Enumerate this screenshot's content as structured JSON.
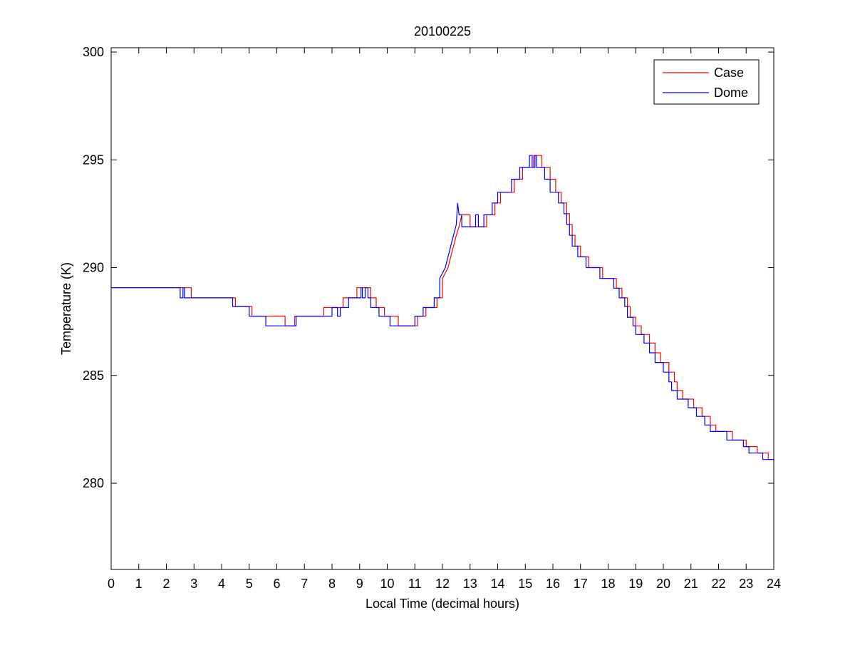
{
  "chart_data": {
    "type": "line",
    "title": "20100225",
    "xlabel": "Local Time (decimal hours)",
    "ylabel": "Temperature (K)",
    "xlim": [
      0,
      24
    ],
    "ylim": [
      276,
      300.2
    ],
    "xticks": [
      "0",
      "1",
      "2",
      "3",
      "4",
      "5",
      "6",
      "7",
      "8",
      "9",
      "10",
      "11",
      "12",
      "13",
      "14",
      "15",
      "16",
      "17",
      "18",
      "19",
      "20",
      "21",
      "22",
      "23",
      "24"
    ],
    "yticks": [
      "280",
      "285",
      "290",
      "295",
      "300"
    ],
    "grid": false,
    "legend_position": "top-right",
    "series": [
      {
        "name": "Case",
        "color": "#ff0000",
        "points": [
          [
            0.0,
            289.07
          ],
          [
            2.5,
            289.07
          ],
          [
            2.9,
            289.07
          ],
          [
            2.9,
            288.6
          ],
          [
            4.5,
            288.6
          ],
          [
            4.5,
            288.2
          ],
          [
            5.1,
            288.2
          ],
          [
            5.1,
            287.75
          ],
          [
            6.3,
            287.75
          ],
          [
            6.3,
            287.3
          ],
          [
            6.65,
            287.3
          ],
          [
            6.65,
            287.75
          ],
          [
            7.7,
            287.75
          ],
          [
            7.7,
            288.15
          ],
          [
            8.4,
            288.15
          ],
          [
            8.4,
            288.6
          ],
          [
            8.9,
            288.6
          ],
          [
            8.9,
            289.07
          ],
          [
            9.4,
            289.07
          ],
          [
            9.4,
            288.6
          ],
          [
            9.6,
            288.6
          ],
          [
            9.6,
            288.15
          ],
          [
            9.9,
            288.15
          ],
          [
            9.9,
            287.75
          ],
          [
            10.4,
            287.75
          ],
          [
            10.4,
            287.3
          ],
          [
            11.1,
            287.3
          ],
          [
            11.1,
            287.75
          ],
          [
            11.4,
            287.75
          ],
          [
            11.4,
            288.15
          ],
          [
            11.8,
            288.15
          ],
          [
            11.8,
            288.6
          ],
          [
            12.0,
            288.6
          ],
          [
            12.0,
            289.5
          ],
          [
            12.2,
            290.0
          ],
          [
            12.3,
            290.5
          ],
          [
            12.4,
            291.0
          ],
          [
            12.5,
            291.5
          ],
          [
            12.6,
            291.9
          ],
          [
            12.7,
            292.45
          ],
          [
            13.0,
            292.45
          ],
          [
            13.0,
            291.9
          ],
          [
            13.6,
            291.9
          ],
          [
            13.6,
            292.45
          ],
          [
            13.9,
            292.45
          ],
          [
            13.9,
            293.0
          ],
          [
            14.1,
            293.0
          ],
          [
            14.1,
            293.5
          ],
          [
            14.6,
            293.5
          ],
          [
            14.6,
            294.1
          ],
          [
            14.9,
            294.1
          ],
          [
            14.9,
            294.65
          ],
          [
            15.3,
            294.65
          ],
          [
            15.3,
            295.2
          ],
          [
            15.6,
            295.2
          ],
          [
            15.6,
            294.65
          ],
          [
            15.9,
            294.65
          ],
          [
            15.9,
            294.1
          ],
          [
            16.1,
            294.1
          ],
          [
            16.1,
            293.5
          ],
          [
            16.3,
            293.5
          ],
          [
            16.3,
            293.0
          ],
          [
            16.5,
            293.0
          ],
          [
            16.5,
            292.5
          ],
          [
            16.6,
            292.5
          ],
          [
            16.6,
            292.0
          ],
          [
            16.7,
            292.0
          ],
          [
            16.7,
            291.5
          ],
          [
            16.8,
            291.5
          ],
          [
            16.8,
            291.0
          ],
          [
            17.0,
            291.0
          ],
          [
            17.0,
            290.5
          ],
          [
            17.3,
            290.5
          ],
          [
            17.3,
            290.0
          ],
          [
            17.8,
            290.0
          ],
          [
            17.8,
            289.5
          ],
          [
            18.3,
            289.5
          ],
          [
            18.3,
            289.05
          ],
          [
            18.5,
            289.05
          ],
          [
            18.5,
            288.6
          ],
          [
            18.7,
            288.6
          ],
          [
            18.7,
            288.2
          ],
          [
            18.8,
            288.2
          ],
          [
            18.8,
            287.7
          ],
          [
            19.0,
            287.7
          ],
          [
            19.0,
            287.3
          ],
          [
            19.2,
            287.3
          ],
          [
            19.2,
            286.9
          ],
          [
            19.5,
            286.9
          ],
          [
            19.5,
            286.5
          ],
          [
            19.7,
            286.5
          ],
          [
            19.7,
            286.05
          ],
          [
            19.9,
            286.05
          ],
          [
            19.9,
            285.6
          ],
          [
            20.2,
            285.6
          ],
          [
            20.2,
            285.15
          ],
          [
            20.4,
            285.15
          ],
          [
            20.4,
            284.7
          ],
          [
            20.5,
            284.7
          ],
          [
            20.5,
            284.3
          ],
          [
            20.7,
            284.3
          ],
          [
            20.7,
            283.9
          ],
          [
            21.1,
            283.9
          ],
          [
            21.1,
            283.5
          ],
          [
            21.4,
            283.5
          ],
          [
            21.4,
            283.1
          ],
          [
            21.7,
            283.1
          ],
          [
            21.7,
            282.7
          ],
          [
            21.9,
            282.7
          ],
          [
            21.9,
            282.4
          ],
          [
            22.5,
            282.4
          ],
          [
            22.5,
            282.0
          ],
          [
            23.0,
            282.0
          ],
          [
            23.0,
            281.7
          ],
          [
            23.4,
            281.7
          ],
          [
            23.4,
            281.4
          ],
          [
            23.8,
            281.4
          ],
          [
            23.8,
            281.1
          ],
          [
            24.0,
            281.1
          ]
        ]
      },
      {
        "name": "Dome",
        "color": "#0000ff",
        "points": [
          [
            0.0,
            289.07
          ],
          [
            2.5,
            289.07
          ],
          [
            2.5,
            288.6
          ],
          [
            2.6,
            288.6
          ],
          [
            2.6,
            289.07
          ],
          [
            2.65,
            289.07
          ],
          [
            2.65,
            288.6
          ],
          [
            4.4,
            288.6
          ],
          [
            4.4,
            288.2
          ],
          [
            5.0,
            288.2
          ],
          [
            5.0,
            287.75
          ],
          [
            5.6,
            287.75
          ],
          [
            5.6,
            287.3
          ],
          [
            6.7,
            287.3
          ],
          [
            6.7,
            287.75
          ],
          [
            8.0,
            287.75
          ],
          [
            8.0,
            288.15
          ],
          [
            8.2,
            288.15
          ],
          [
            8.2,
            287.75
          ],
          [
            8.3,
            287.75
          ],
          [
            8.3,
            288.15
          ],
          [
            8.6,
            288.15
          ],
          [
            8.6,
            288.6
          ],
          [
            9.05,
            288.6
          ],
          [
            9.05,
            289.07
          ],
          [
            9.1,
            289.07
          ],
          [
            9.1,
            288.6
          ],
          [
            9.2,
            288.6
          ],
          [
            9.2,
            289.07
          ],
          [
            9.3,
            289.07
          ],
          [
            9.3,
            288.6
          ],
          [
            9.4,
            288.6
          ],
          [
            9.4,
            288.15
          ],
          [
            9.7,
            288.15
          ],
          [
            9.7,
            287.75
          ],
          [
            10.1,
            287.75
          ],
          [
            10.1,
            287.3
          ],
          [
            11.0,
            287.3
          ],
          [
            11.0,
            287.75
          ],
          [
            11.3,
            287.75
          ],
          [
            11.3,
            288.15
          ],
          [
            11.7,
            288.15
          ],
          [
            11.7,
            288.6
          ],
          [
            11.9,
            288.6
          ],
          [
            11.9,
            289.5
          ],
          [
            12.1,
            290.0
          ],
          [
            12.2,
            290.5
          ],
          [
            12.3,
            291.0
          ],
          [
            12.4,
            291.5
          ],
          [
            12.5,
            292.0
          ],
          [
            12.55,
            293.0
          ],
          [
            12.6,
            292.45
          ],
          [
            12.7,
            292.45
          ],
          [
            12.7,
            291.9
          ],
          [
            13.2,
            291.9
          ],
          [
            13.2,
            292.45
          ],
          [
            13.3,
            292.45
          ],
          [
            13.3,
            291.9
          ],
          [
            13.5,
            291.9
          ],
          [
            13.5,
            292.45
          ],
          [
            13.8,
            292.45
          ],
          [
            13.8,
            293.0
          ],
          [
            14.0,
            293.0
          ],
          [
            14.0,
            293.5
          ],
          [
            14.5,
            293.5
          ],
          [
            14.5,
            294.1
          ],
          [
            14.8,
            294.1
          ],
          [
            14.8,
            294.65
          ],
          [
            15.15,
            294.65
          ],
          [
            15.15,
            295.2
          ],
          [
            15.25,
            295.2
          ],
          [
            15.25,
            294.65
          ],
          [
            15.35,
            294.65
          ],
          [
            15.35,
            295.2
          ],
          [
            15.4,
            295.2
          ],
          [
            15.4,
            294.65
          ],
          [
            15.7,
            294.65
          ],
          [
            15.7,
            294.1
          ],
          [
            15.9,
            294.1
          ],
          [
            15.9,
            293.5
          ],
          [
            16.2,
            293.5
          ],
          [
            16.2,
            293.0
          ],
          [
            16.4,
            293.0
          ],
          [
            16.4,
            292.5
          ],
          [
            16.5,
            292.5
          ],
          [
            16.5,
            292.0
          ],
          [
            16.6,
            292.0
          ],
          [
            16.6,
            291.5
          ],
          [
            16.7,
            291.5
          ],
          [
            16.7,
            291.0
          ],
          [
            16.9,
            291.0
          ],
          [
            16.9,
            290.5
          ],
          [
            17.2,
            290.5
          ],
          [
            17.2,
            290.0
          ],
          [
            17.7,
            290.0
          ],
          [
            17.7,
            289.5
          ],
          [
            18.2,
            289.5
          ],
          [
            18.2,
            289.05
          ],
          [
            18.4,
            289.05
          ],
          [
            18.4,
            288.6
          ],
          [
            18.6,
            288.6
          ],
          [
            18.6,
            288.2
          ],
          [
            18.7,
            288.2
          ],
          [
            18.7,
            287.7
          ],
          [
            18.9,
            287.7
          ],
          [
            18.9,
            287.3
          ],
          [
            19.0,
            287.3
          ],
          [
            19.0,
            286.9
          ],
          [
            19.3,
            286.9
          ],
          [
            19.3,
            286.5
          ],
          [
            19.5,
            286.5
          ],
          [
            19.5,
            286.05
          ],
          [
            19.7,
            286.05
          ],
          [
            19.7,
            285.6
          ],
          [
            20.0,
            285.6
          ],
          [
            20.0,
            285.15
          ],
          [
            20.2,
            285.15
          ],
          [
            20.2,
            284.7
          ],
          [
            20.3,
            284.7
          ],
          [
            20.3,
            284.3
          ],
          [
            20.5,
            284.3
          ],
          [
            20.5,
            283.9
          ],
          [
            20.9,
            283.9
          ],
          [
            20.9,
            283.5
          ],
          [
            21.2,
            283.5
          ],
          [
            21.2,
            283.1
          ],
          [
            21.5,
            283.1
          ],
          [
            21.5,
            282.7
          ],
          [
            21.7,
            282.7
          ],
          [
            21.7,
            282.4
          ],
          [
            22.3,
            282.4
          ],
          [
            22.3,
            282.0
          ],
          [
            22.9,
            282.0
          ],
          [
            22.9,
            281.7
          ],
          [
            23.1,
            281.7
          ],
          [
            23.1,
            281.4
          ],
          [
            23.6,
            281.4
          ],
          [
            23.6,
            281.1
          ],
          [
            24.0,
            281.1
          ]
        ]
      }
    ]
  }
}
